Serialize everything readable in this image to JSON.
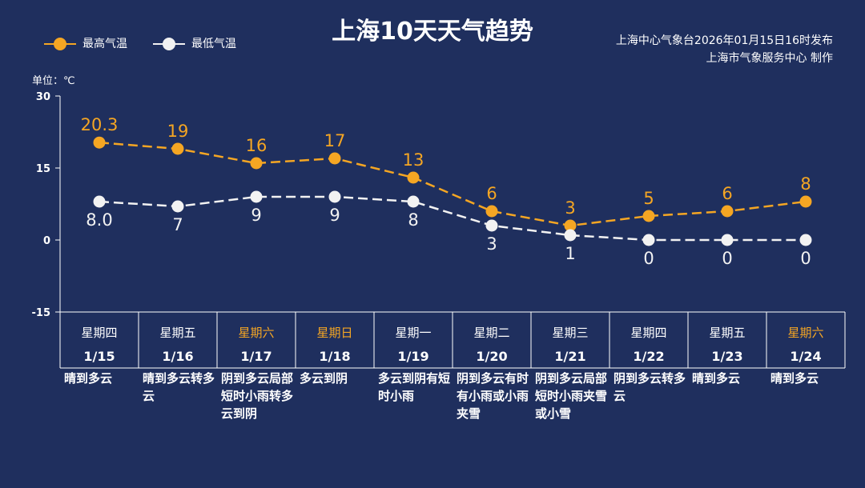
{
  "title": "上海10天天气趋势",
  "legend": [
    {
      "label": "最高气温",
      "color": "#f5a623"
    },
    {
      "label": "最低气温",
      "color": "#f2f2f2"
    }
  ],
  "source": {
    "line1": "上海中心气象台2026年01月15日16时发布",
    "line2": "上海市气象服务中心  制作"
  },
  "unit_label": "单位：℃",
  "colors": {
    "background": "#1f2f5e",
    "high": "#f5a623",
    "low": "#f2f2f2",
    "weekend": "#f5a623",
    "axis": "#ffffff"
  },
  "chart_data": {
    "type": "line",
    "title": "上海10天天气趋势",
    "ylabel": "单位：℃",
    "ylim": [
      -15,
      30
    ],
    "yticks": [
      30,
      15,
      0,
      -15
    ],
    "grid": false,
    "legend_position": "top-left",
    "categories": [
      "1/15",
      "1/16",
      "1/17",
      "1/18",
      "1/19",
      "1/20",
      "1/21",
      "1/22",
      "1/23",
      "1/24"
    ],
    "weekdays": [
      "星期四",
      "星期五",
      "星期六",
      "星期日",
      "星期一",
      "星期二",
      "星期三",
      "星期四",
      "星期五",
      "星期六"
    ],
    "weekend": [
      false,
      false,
      true,
      true,
      false,
      false,
      false,
      false,
      false,
      true
    ],
    "weather": [
      "晴到多云",
      "晴到多云转多云",
      "阴到多云局部短时小雨转多云到阴",
      "多云到阴",
      "多云到阴有短时小雨",
      "阴到多云有时有小雨或小雨夹雪",
      "阴到多云局部短时小雨夹雪或小雪",
      "阴到多云转多云",
      "晴到多云",
      "晴到多云"
    ],
    "series": [
      {
        "name": "最高气温",
        "values": [
          20.3,
          19,
          16,
          17,
          13,
          6,
          3,
          5,
          6,
          8
        ],
        "labels": [
          "20.3",
          "19",
          "16",
          "17",
          "13",
          "6",
          "3",
          "5",
          "6",
          "8"
        ]
      },
      {
        "name": "最低气温",
        "values": [
          8.0,
          7,
          9,
          9,
          8,
          3,
          1,
          0,
          0,
          0
        ],
        "labels": [
          "8.0",
          "7",
          "9",
          "9",
          "8",
          "3",
          "1",
          "0",
          "0",
          "0"
        ]
      }
    ]
  }
}
